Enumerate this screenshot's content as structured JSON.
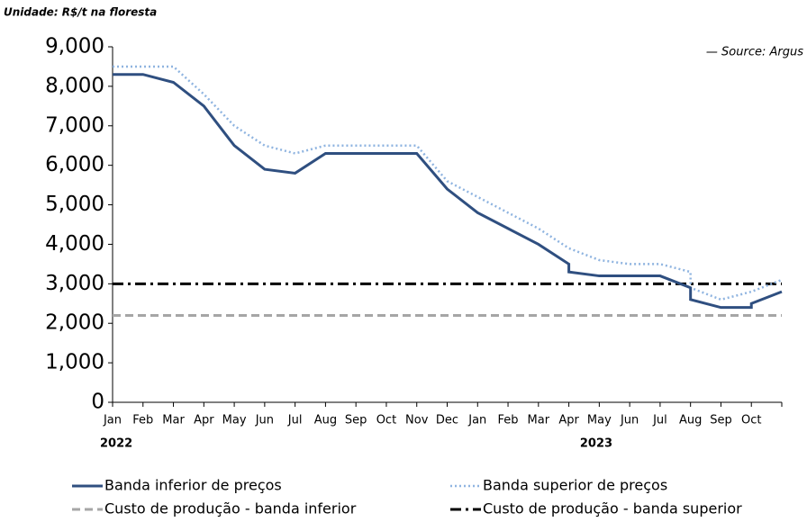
{
  "chart_data": {
    "type": "line",
    "subtitle": "Unidade: R$/t na floresta",
    "source": "— Source: Argus",
    "annotations": [
      "2022",
      "2023"
    ],
    "categories": [
      "Jan",
      "Feb",
      "Mar",
      "Apr",
      "May",
      "Jun",
      "Jul",
      "Aug",
      "Sep",
      "Oct",
      "Nov",
      "Dec",
      "Jan",
      "Feb",
      "Mar",
      "Apr",
      "May",
      "Jun",
      "Jul",
      "Aug",
      "Sep",
      "Oct",
      null
    ],
    "xlim": [
      0,
      22
    ],
    "ylim": [
      0,
      9000
    ],
    "yticks": [
      {
        "value": 0,
        "label": "0"
      },
      {
        "value": 1000,
        "label": "1,000"
      },
      {
        "value": 2000,
        "label": "2,000"
      },
      {
        "value": 3000,
        "label": "3,000"
      },
      {
        "value": 4000,
        "label": "4,000"
      },
      {
        "value": 5000,
        "label": "5,000"
      },
      {
        "value": 6000,
        "label": "6,000"
      },
      {
        "value": 7000,
        "label": "7,000"
      },
      {
        "value": 8000,
        "label": "8,000"
      },
      {
        "value": 9000,
        "label": "9,000"
      }
    ],
    "series": [
      {
        "name": "Banda inferior de preços",
        "color": "#2f4f80",
        "dash": "solid",
        "x": [
          0,
          1,
          2,
          3,
          4,
          5,
          6,
          7,
          8,
          9,
          10,
          11,
          12,
          13,
          14,
          15,
          15,
          16,
          17,
          18,
          19,
          19,
          20,
          21,
          21,
          22
        ],
        "values": [
          8300,
          8300,
          8100,
          7500,
          6500,
          5900,
          5800,
          6300,
          6300,
          6300,
          6300,
          5400,
          4800,
          4400,
          4000,
          3500,
          3300,
          3200,
          3200,
          3200,
          2900,
          2600,
          2400,
          2400,
          2500,
          2800
        ]
      },
      {
        "name": "Banda superior de preços",
        "color": "#8fb4e0",
        "dash": "dotted",
        "x": [
          0,
          1,
          2,
          3,
          4,
          5,
          6,
          7,
          8,
          9,
          10,
          11,
          12,
          13,
          14,
          15,
          16,
          17,
          18,
          19,
          19,
          20,
          21,
          22
        ],
        "values": [
          8500,
          8500,
          8500,
          7800,
          7000,
          6500,
          6300,
          6500,
          6500,
          6500,
          6500,
          5600,
          5200,
          4800,
          4400,
          3900,
          3600,
          3500,
          3500,
          3300,
          2900,
          2600,
          2800,
          3100
        ]
      },
      {
        "name": "Custo de produção - banda inferior",
        "color": "#a6a6a6",
        "dash": "dashed",
        "x": [
          0,
          22
        ],
        "values": [
          2200,
          2200
        ]
      },
      {
        "name": "Custo de produção - banda superior",
        "color": "#000000",
        "dash": "dashdot",
        "x": [
          0,
          22
        ],
        "values": [
          3000,
          3000
        ]
      }
    ]
  }
}
